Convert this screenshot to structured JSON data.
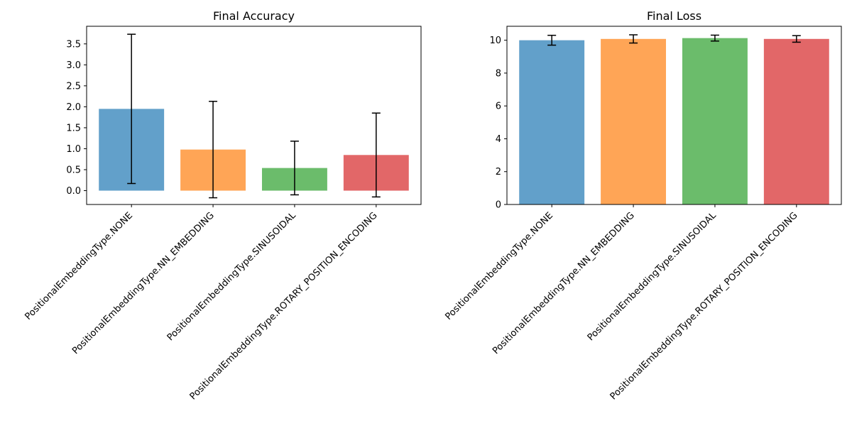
{
  "chart_data": [
    {
      "type": "bar",
      "title": "Final Accuracy",
      "xlabel": "",
      "ylabel": "",
      "categories": [
        "PositionalEmbeddingType.NONE",
        "PositionalEmbeddingType.NN_EMBEDDING",
        "PositionalEmbeddingType.SINUSOIDAL",
        "PositionalEmbeddingType.ROTARY_POSITION_ENCODING"
      ],
      "values": [
        1.95,
        0.98,
        0.54,
        0.85
      ],
      "errors": [
        1.78,
        1.15,
        0.64,
        1.0
      ],
      "colors": [
        "#1f77b4",
        "#ff7f0e",
        "#2ca02c",
        "#d62728"
      ],
      "ylim": [
        -0.33,
        3.92
      ],
      "yticks": [
        0.0,
        0.5,
        1.0,
        1.5,
        2.0,
        2.5,
        3.0,
        3.5
      ],
      "ytick_labels": [
        "0.0",
        "0.5",
        "1.0",
        "1.5",
        "2.0",
        "2.5",
        "3.0",
        "3.5"
      ],
      "grid": false
    },
    {
      "type": "bar",
      "title": "Final Loss",
      "xlabel": "",
      "ylabel": "",
      "categories": [
        "PositionalEmbeddingType.NONE",
        "PositionalEmbeddingType.NN_EMBEDDING",
        "PositionalEmbeddingType.SINUSOIDAL",
        "PositionalEmbeddingType.ROTARY_POSITION_ENCODING"
      ],
      "values": [
        10.0,
        10.08,
        10.13,
        10.08
      ],
      "errors": [
        0.3,
        0.25,
        0.18,
        0.2
      ],
      "colors": [
        "#1f77b4",
        "#ff7f0e",
        "#2ca02c",
        "#d62728"
      ],
      "ylim": [
        0,
        10.85
      ],
      "yticks": [
        0,
        2,
        4,
        6,
        8,
        10
      ],
      "ytick_labels": [
        "0",
        "2",
        "4",
        "6",
        "8",
        "10"
      ],
      "grid": false
    }
  ]
}
